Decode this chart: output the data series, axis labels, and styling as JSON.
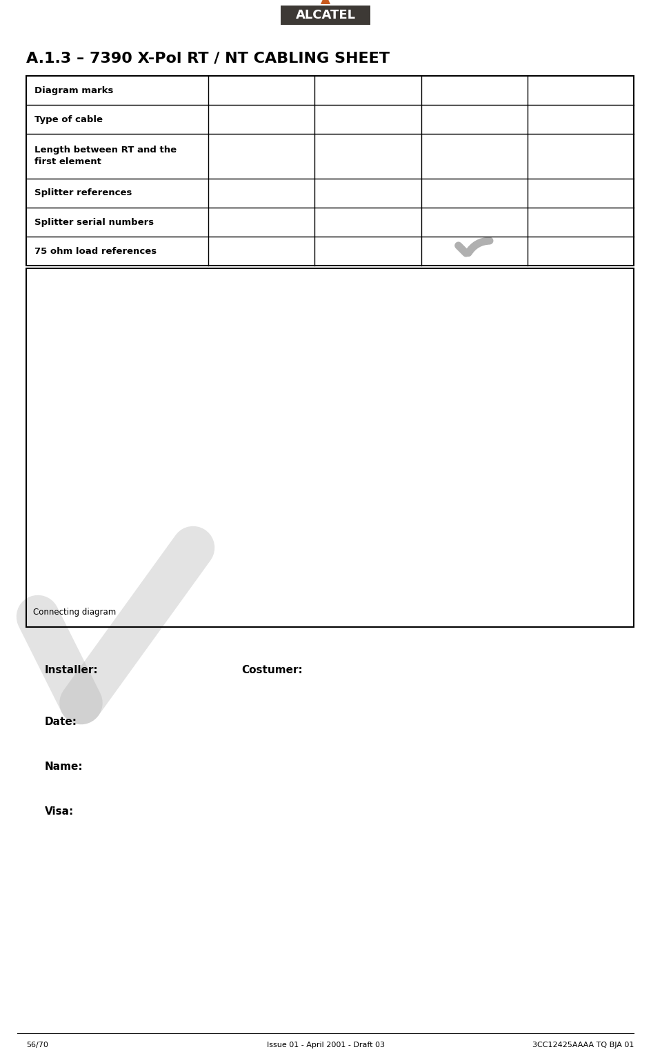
{
  "title": "A.1.3 – 7390 X-Pol RT / NT CABLING SHEET",
  "table_rows": [
    "Diagram marks",
    "Type of cable",
    "Length between RT and the\nfirst element",
    "Splitter references",
    "Splitter serial numbers",
    "75 ohm load references"
  ],
  "num_cols": 5,
  "connecting_diagram_label": "Connecting diagram",
  "installer_label": "Installer:",
  "costumer_label": "Costumer:",
  "date_label": "Date:",
  "name_label": "Name:",
  "visa_label": "Visa:",
  "footer_left": "56/70",
  "footer_center": "Issue 01 - April 2001 - Draft 03",
  "footer_right": "3CC12425AAAA TQ BJA 01",
  "alcatel_bg": "#3d3935",
  "alcatel_text": "#ffffff",
  "arrow_color": "#c85a1e",
  "watermark_color": "#b0b0b0",
  "border_color": "#000000",
  "text_color": "#000000",
  "bg_color": "#ffffff",
  "page_width": 9.44,
  "page_height": 15.28
}
